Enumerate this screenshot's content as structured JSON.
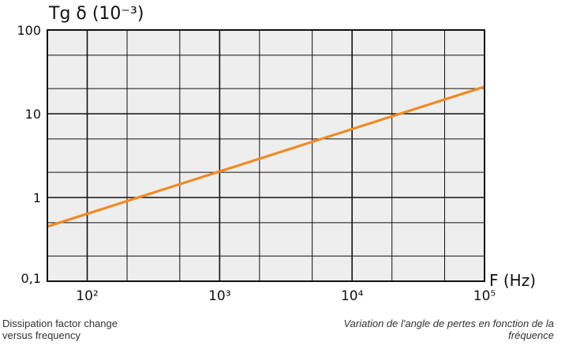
{
  "chart_data": {
    "type": "line",
    "ylabel": "Tg δ (10⁻³)",
    "xlabel": "F (Hz)",
    "x_scale": "log",
    "y_scale": "log",
    "xlim": [
      50,
      100000
    ],
    "ylim": [
      0.1,
      100
    ],
    "x_ticks": [
      100,
      1000,
      10000,
      100000
    ],
    "x_tick_labels": [
      "10²",
      "10³",
      "10⁴",
      "10⁵"
    ],
    "y_ticks": [
      0.1,
      1,
      10,
      100
    ],
    "y_tick_labels": [
      "0,1",
      "1",
      "10",
      "100"
    ],
    "grid": true,
    "background_color": "#eeeeee",
    "series": [
      {
        "color": "#f08a24",
        "x": [
          50,
          100000
        ],
        "y": [
          0.45,
          21
        ]
      }
    ]
  },
  "captions": {
    "left": "Dissipation factor change\nversus frequency",
    "right": "Variation de l'angle de pertes en fonction de la\nfréquence"
  }
}
